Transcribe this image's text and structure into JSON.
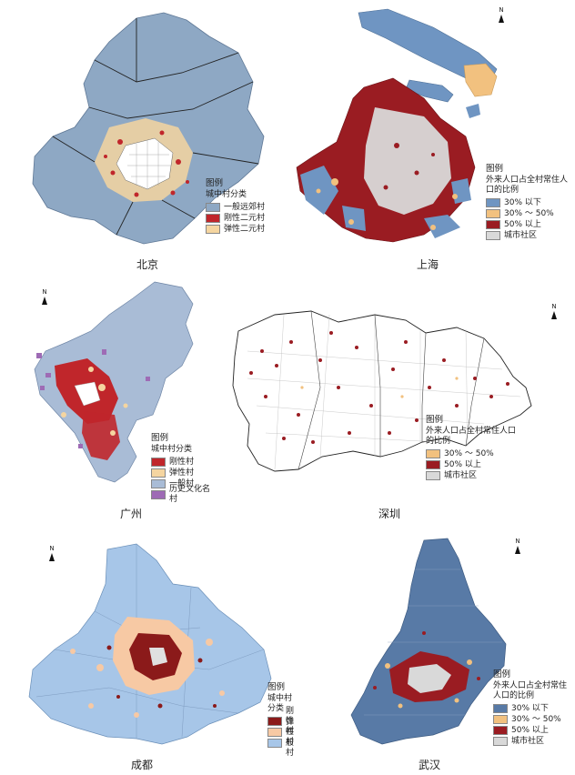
{
  "colors": {
    "suburban": "#8ea8c4",
    "rigid": "#c0262b",
    "flexible": "#f5d5a0",
    "low": "#6f95c2",
    "mid": "#f2c17f",
    "high": "#9a1c22",
    "urban": "#d9d9d9",
    "general_gz": "#a9bcd6",
    "historic": "#9e6bb5",
    "rigid_dark": "#8b1a1a",
    "flexible_cd": "#f7c9a4",
    "general_cd": "#a7c6e8",
    "wh_low": "#587aa6"
  },
  "north_symbol": "N",
  "panels": [
    {
      "id": "beijing",
      "name": "北京",
      "legend": {
        "title": "图例",
        "subtitle": "城中村分类",
        "items": [
          {
            "label": "一般远郊村",
            "color_key": "suburban"
          },
          {
            "label": "刚性二元村",
            "color_key": "rigid"
          },
          {
            "label": "弹性二元村",
            "color_key": "flexible"
          }
        ]
      }
    },
    {
      "id": "shanghai",
      "name": "上海",
      "legend": {
        "title": "图例",
        "subtitle": "外来人口占全村常住人口的比例",
        "items": [
          {
            "label": "30% 以下",
            "color_key": "low"
          },
          {
            "label": "30% ～ 50%",
            "color_key": "mid"
          },
          {
            "label": "50% 以上",
            "color_key": "high"
          },
          {
            "label": "城市社区",
            "color_key": "urban"
          }
        ]
      }
    },
    {
      "id": "guangzhou",
      "name": "广州",
      "legend": {
        "title": "图例",
        "subtitle": "城中村分类",
        "items": [
          {
            "label": "刚性村",
            "color_key": "rigid"
          },
          {
            "label": "弹性村",
            "color_key": "flexible"
          },
          {
            "label": "一般村",
            "color_key": "general_gz"
          },
          {
            "label": "历史文化名村",
            "color_key": "historic"
          }
        ]
      }
    },
    {
      "id": "shenzhen",
      "name": "深圳",
      "legend": {
        "title": "图例",
        "subtitle": "外来人口占全村常住人口的比例",
        "items": [
          {
            "label": "30% ～ 50%",
            "color_key": "mid"
          },
          {
            "label": "50% 以上",
            "color_key": "high"
          },
          {
            "label": "城市社区",
            "color_key": "urban"
          }
        ]
      }
    },
    {
      "id": "chengdu",
      "name": "成都",
      "legend": {
        "title": "图例",
        "subtitle": "城中村分类",
        "items": [
          {
            "label": "刚性村",
            "color_key": "rigid_dark"
          },
          {
            "label": "弹性村",
            "color_key": "flexible_cd"
          },
          {
            "label": "一般村",
            "color_key": "general_cd"
          }
        ]
      }
    },
    {
      "id": "wuhan",
      "name": "武汉",
      "legend": {
        "title": "图例",
        "subtitle": "外来人口占全村常住人口的比例",
        "items": [
          {
            "label": "30% 以下",
            "color_key": "wh_low"
          },
          {
            "label": "30% ～ 50%",
            "color_key": "mid"
          },
          {
            "label": "50% 以上",
            "color_key": "high"
          },
          {
            "label": "城市社区",
            "color_key": "urban"
          }
        ]
      }
    }
  ]
}
